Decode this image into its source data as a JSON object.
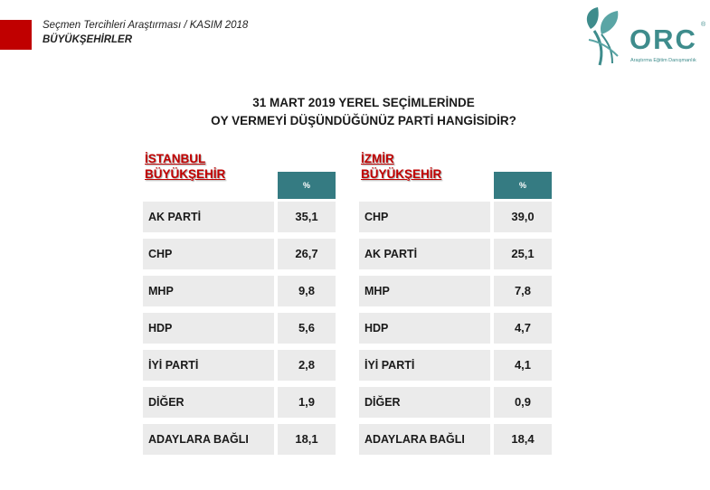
{
  "header": {
    "line1": "Seçmen Tercihleri Araştırması / KASIM 2018",
    "line2": "BÜYÜKŞEHİRLER"
  },
  "logo": {
    "letters": "ORC",
    "registered": "®",
    "subtitle": "Araştırma Eğitim Danışmanlık"
  },
  "title": {
    "line1": "31 MART 2019 YEREL SEÇİMLERİNDE",
    "line2": "OY VERMEYİ DÜŞÜNDÜĞÜNÜZ PARTİ HANGİSİDİR?"
  },
  "colors": {
    "accent_red": "#c00000",
    "teal": "#357b82",
    "row_bg": "#ebebeb"
  },
  "tables": [
    {
      "city_line1": "İSTANBUL",
      "city_line2": "BÜYÜKŞEHİR",
      "pct_header": "%",
      "rows": [
        {
          "party": "AK PARTİ",
          "value": "35,1"
        },
        {
          "party": "CHP",
          "value": "26,7"
        },
        {
          "party": "MHP",
          "value": "9,8"
        },
        {
          "party": "HDP",
          "value": "5,6"
        },
        {
          "party": "İYİ PARTİ",
          "value": "2,8"
        },
        {
          "party": "DİĞER",
          "value": "1,9"
        },
        {
          "party": "ADAYLARA BAĞLI",
          "value": "18,1"
        }
      ]
    },
    {
      "city_line1": "İZMİR",
      "city_line2": "BÜYÜKŞEHİR",
      "pct_header": "%",
      "rows": [
        {
          "party": "CHP",
          "value": "39,0"
        },
        {
          "party": "AK PARTİ",
          "value": "25,1"
        },
        {
          "party": "MHP",
          "value": "7,8"
        },
        {
          "party": "HDP",
          "value": "4,7"
        },
        {
          "party": "İYİ PARTİ",
          "value": "4,1"
        },
        {
          "party": "DİĞER",
          "value": "0,9"
        },
        {
          "party": "ADAYLARA BAĞLI",
          "value": "18,4"
        }
      ]
    }
  ]
}
